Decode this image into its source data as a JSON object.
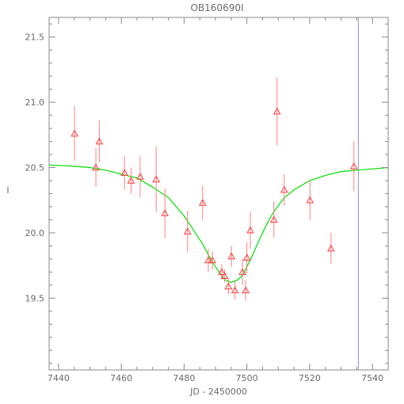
{
  "colors": {
    "frame": "#8a8a8a",
    "text": "#6a6a6a",
    "points": "#ff3b3b",
    "errorbars": "#ff8080",
    "model": "#00dd00",
    "vline": "#8f8fd8"
  },
  "chart_data": {
    "type": "scatter",
    "title": "OB160690I",
    "xlabel": "JD - 2450000",
    "ylabel": "I",
    "xlim": [
      7437,
      7545
    ],
    "ylim": [
      21.65,
      18.95
    ],
    "y_inverted": true,
    "grid": false,
    "x_ticks": [
      7440,
      7460,
      7480,
      7500,
      7520,
      7540
    ],
    "y_ticks": [
      19.5,
      20.0,
      20.5,
      21.0,
      21.5
    ],
    "x_minor_step": 5,
    "y_minor_step": 0.1,
    "points": [
      {
        "x": 7445.1,
        "y": 20.76,
        "err": 0.21
      },
      {
        "x": 7451.9,
        "y": 20.5,
        "err": 0.15
      },
      {
        "x": 7453.0,
        "y": 20.7,
        "err": 0.16
      },
      {
        "x": 7461.0,
        "y": 20.46,
        "err": 0.13
      },
      {
        "x": 7463.1,
        "y": 20.4,
        "err": 0.1
      },
      {
        "x": 7466.0,
        "y": 20.43,
        "err": 0.16
      },
      {
        "x": 7471.1,
        "y": 20.41,
        "err": 0.25
      },
      {
        "x": 7473.9,
        "y": 20.15,
        "err": 0.19
      },
      {
        "x": 7481.1,
        "y": 20.01,
        "err": 0.16
      },
      {
        "x": 7485.9,
        "y": 20.23,
        "err": 0.13
      },
      {
        "x": 7487.7,
        "y": 19.79,
        "err": 0.09
      },
      {
        "x": 7489.0,
        "y": 19.79,
        "err": 0.07
      },
      {
        "x": 7492.0,
        "y": 19.7,
        "err": 0.06
      },
      {
        "x": 7492.9,
        "y": 19.67,
        "err": 0.05
      },
      {
        "x": 7494.1,
        "y": 19.59,
        "err": 0.06
      },
      {
        "x": 7495.1,
        "y": 19.82,
        "err": 0.08
      },
      {
        "x": 7496.2,
        "y": 19.56,
        "err": 0.07
      },
      {
        "x": 7498.6,
        "y": 19.7,
        "err": 0.1
      },
      {
        "x": 7499.6,
        "y": 19.56,
        "err": 0.08
      },
      {
        "x": 7500.0,
        "y": 19.81,
        "err": 0.12
      },
      {
        "x": 7501.1,
        "y": 20.02,
        "err": 0.14
      },
      {
        "x": 7508.6,
        "y": 20.1,
        "err": 0.14
      },
      {
        "x": 7509.6,
        "y": 20.93,
        "err": 0.26
      },
      {
        "x": 7511.9,
        "y": 20.33,
        "err": 0.12
      },
      {
        "x": 7520.1,
        "y": 20.25,
        "err": 0.15
      },
      {
        "x": 7526.8,
        "y": 19.88,
        "err": 0.12
      },
      {
        "x": 7534.1,
        "y": 20.51,
        "err": 0.19
      }
    ],
    "model_curve": {
      "name": "",
      "x": [
        7437,
        7445,
        7450,
        7455,
        7460,
        7465,
        7470,
        7475,
        7480,
        7483,
        7486,
        7488,
        7490,
        7492,
        7493,
        7494,
        7495,
        7496,
        7497,
        7498,
        7499,
        7500,
        7502,
        7504,
        7506,
        7508,
        7510,
        7512,
        7515,
        7520,
        7525,
        7530,
        7535,
        7540,
        7545
      ],
      "y": [
        20.52,
        20.51,
        20.5,
        20.48,
        20.45,
        20.42,
        20.35,
        20.27,
        20.13,
        20.02,
        19.91,
        19.82,
        19.74,
        19.67,
        19.64,
        19.63,
        19.62,
        19.63,
        19.64,
        19.66,
        19.69,
        19.74,
        19.84,
        19.95,
        20.05,
        20.14,
        20.21,
        20.27,
        20.33,
        20.4,
        20.44,
        20.47,
        20.48,
        20.49,
        20.5
      ]
    },
    "vertical_line_x": 7535.5
  }
}
